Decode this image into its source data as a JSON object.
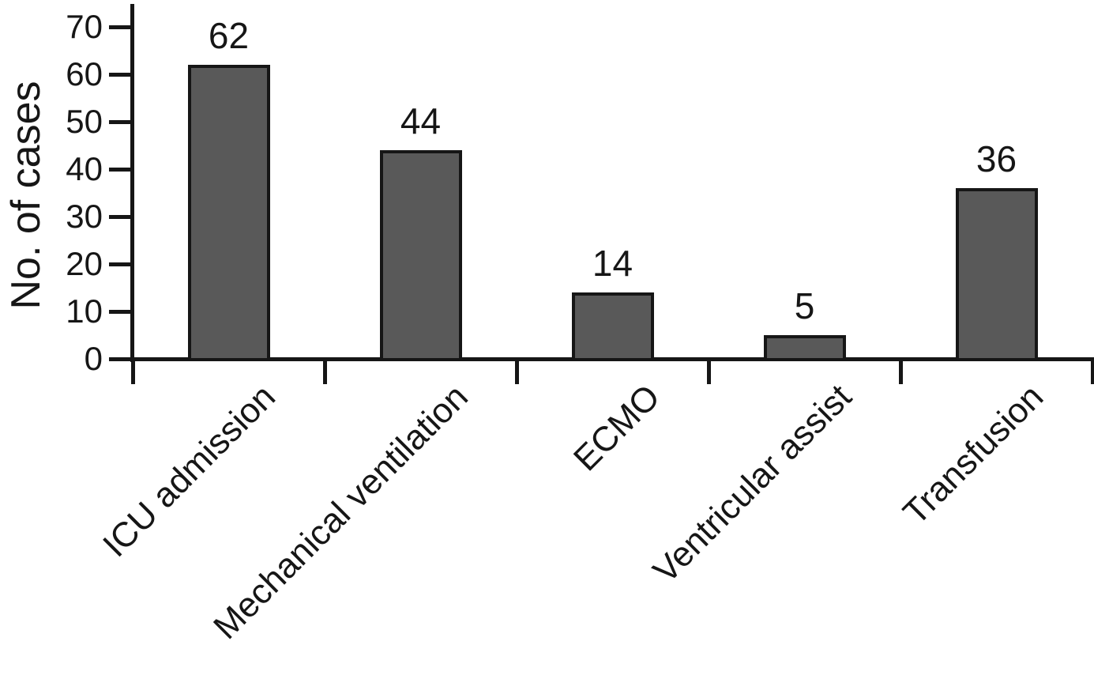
{
  "chart_data": {
    "type": "bar",
    "title": "",
    "xlabel": "",
    "ylabel": "No. of cases",
    "categories": [
      "ICU admission",
      "Mechanical ventilation",
      "ECMO",
      "Ventricular assist",
      "Transfusion"
    ],
    "values": [
      62,
      44,
      14,
      5,
      36
    ],
    "value_labels": [
      "62",
      "44",
      "14",
      "5",
      "36"
    ],
    "ylim": [
      0,
      70
    ],
    "yticks": [
      0,
      10,
      20,
      30,
      40,
      50,
      60,
      70
    ],
    "grid": false,
    "legend": null,
    "category_label_rotation_deg": 45,
    "colors": {
      "bar_fill": "#595959",
      "bar_border": "#161616",
      "axis": "#161616",
      "text": "#161616",
      "background": "#ffffff"
    }
  }
}
